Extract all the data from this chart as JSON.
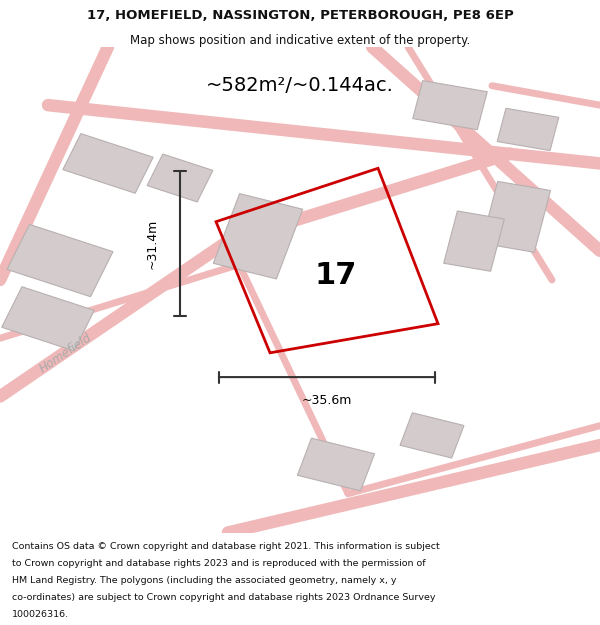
{
  "title_line1": "17, HOMEFIELD, NASSINGTON, PETERBOROUGH, PE8 6EP",
  "title_line2": "Map shows position and indicative extent of the property.",
  "area_label": "~582m²/~0.144ac.",
  "width_label": "~35.6m",
  "height_label": "~31.4m",
  "plot_number": "17",
  "footer_lines": [
    "Contains OS data © Crown copyright and database right 2021. This information is subject",
    "to Crown copyright and database rights 2023 and is reproduced with the permission of",
    "HM Land Registry. The polygons (including the associated geometry, namely x, y",
    "co-ordinates) are subject to Crown copyright and database rights 2023 Ordnance Survey",
    "100026316."
  ],
  "map_bg": "#f5eeee",
  "road_color": "#f0b8b8",
  "building_color": "#d4cccc",
  "building_edge_color": "#b8b0b0",
  "plot_outline_color": "#cc0000",
  "dim_line_color": "#333333",
  "road_label": "Homefield",
  "title_color": "#111111",
  "footer_color": "#111111"
}
